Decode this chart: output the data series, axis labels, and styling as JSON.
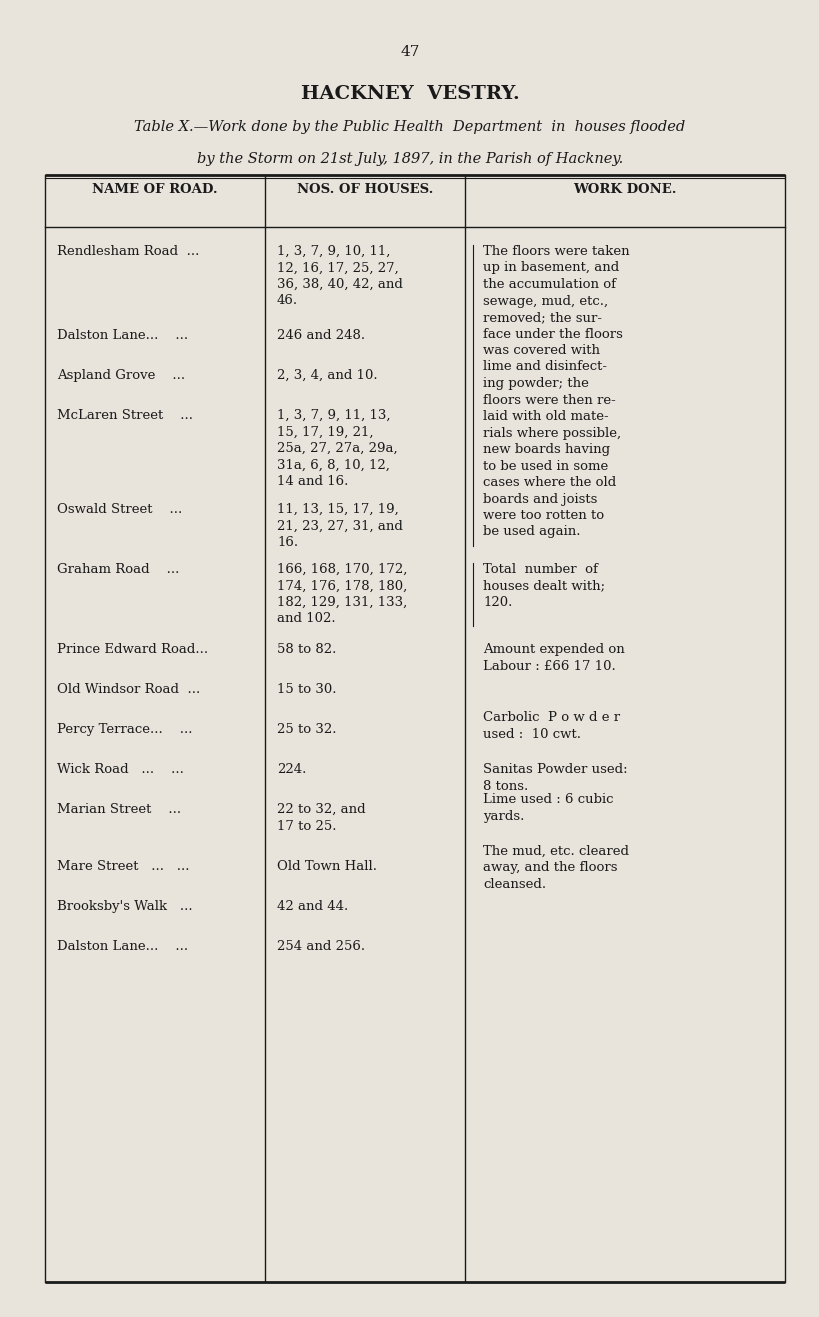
{
  "page_number": "47",
  "main_title": "HACKNEY  VESTRY.",
  "subtitle_line1": "Table X.—Work done by the Public Health  Department  in  houses flooded",
  "subtitle_line2": "by the Storm on 21st July, 1897, in the Parish of Hackney.",
  "col_headers": [
    "NAME OF ROAD.",
    "NOS. OF HOUSES.",
    "WORK DONE."
  ],
  "rows": [
    {
      "name": "Rendlesham Road  ...",
      "nos": "1, 3, 7, 9, 10, 11,\n12, 16, 17, 25, 27,\n36, 38, 40, 42, and\n46.",
      "work": "The floors were taken\nup in basement, and\nthe accumulation of\nsewage, mud, etc.,\nremoved; the sur-\nface under the floors\nwas covered with\nlime and disinfect-\ning powder; the\nfloors were then re-\nlaid with old mate-\nrials where possible,\nnew boards having\nto be used in some\ncases where the old\nboards and joists\nwere too rotten to\nbe used again."
    },
    {
      "name": "Dalston Lane...    ...",
      "nos": "246 and 248.",
      "work": ""
    },
    {
      "name": "Aspland Grove    ...",
      "nos": "2, 3, 4, and 10.",
      "work": ""
    },
    {
      "name": "McLaren Street    ...",
      "nos": "1, 3, 7, 9, 11, 13,\n15, 17, 19, 21,\n25a, 27, 27a, 29a,\n31a, 6, 8, 10, 12,\n14 and 16.",
      "work": ""
    },
    {
      "name": "Oswald Street    ...",
      "nos": "11, 13, 15, 17, 19,\n21, 23, 27, 31, and\n16.",
      "work": ""
    },
    {
      "name": "Graham Road    ...",
      "nos": "166, 168, 170, 172,\n174, 176, 178, 180,\n182, 129, 131, 133,\nand 102.",
      "work": "Total  number  of\nhouses dealt with;\n120."
    },
    {
      "name": "Prince Edward Road...",
      "nos": "58 to 82.",
      "work": "Amount expended on\nLabour : £66 17 10."
    },
    {
      "name": "Old Windsor Road  ...",
      "nos": "15 to 30.",
      "work": "Carbolic  P o w d e r\nused :  10 cwt."
    },
    {
      "name": "Percy Terrace...    ...",
      "nos": "25 to 32.",
      "work": ""
    },
    {
      "name": "Wick Road   ...    ...",
      "nos": "224.",
      "work": "Sanitas Powder used:\n8 tons."
    },
    {
      "name": "Marian Street    ...",
      "nos": "22 to 32, and\n17 to 25.",
      "work": "Lime used : 6 cubic\nyards."
    },
    {
      "name": "Mare Street   ...   ...",
      "nos": "Old Town Hall.",
      "work": "The mud, etc. cleared\naway, and the floors\ncleansed."
    },
    {
      "name": "Brooksby's Walk   ...",
      "nos": "42 and 44.",
      "work": ""
    },
    {
      "name": "Dalston Lane...    ...",
      "nos": "254 and 256.",
      "work": ""
    }
  ],
  "bg_color": "#e8e4dc",
  "text_color": "#1a1a1a",
  "line_color": "#1a1a1a",
  "table_bg": "#ddd9d0"
}
